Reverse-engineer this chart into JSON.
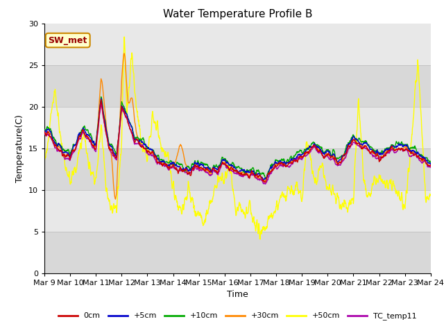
{
  "title": "Water Temperature Profile B",
  "xlabel": "Time",
  "ylabel": "Temperature(C)",
  "ylim": [
    0,
    30
  ],
  "xlim": [
    0,
    15
  ],
  "xtick_labels": [
    "Mar 9",
    "Mar 10",
    "Mar 11",
    "Mar 12",
    "Mar 13",
    "Mar 14",
    "Mar 15",
    "Mar 16",
    "Mar 17",
    "Mar 18",
    "Mar 19",
    "Mar 20",
    "Mar 21",
    "Mar 22",
    "Mar 23",
    "Mar 24"
  ],
  "series_colors": {
    "0cm": "#cc0000",
    "+5cm": "#0000cc",
    "+10cm": "#00aa00",
    "+30cm": "#ff8800",
    "+50cm": "#ffff00",
    "TC_temp11": "#aa00aa"
  },
  "band_colors": [
    "#d8d8d8",
    "#e8e8e8"
  ],
  "legend_label": "SW_met",
  "legend_bg": "#ffffcc",
  "legend_border": "#cc8800",
  "title_fontsize": 11,
  "axis_fontsize": 9,
  "tick_fontsize": 8
}
